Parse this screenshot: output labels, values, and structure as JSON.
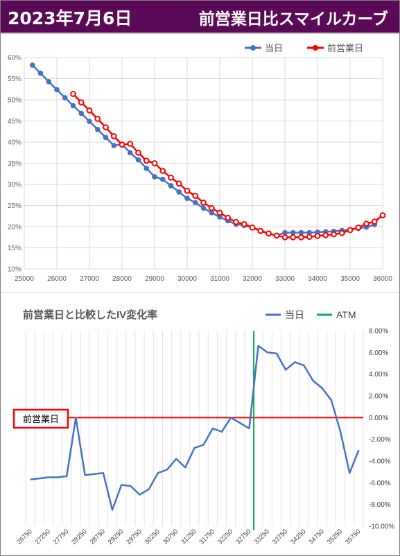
{
  "header": {
    "date": "2023年7月6日",
    "title": "前営業日比スマイルカーブ"
  },
  "colors": {
    "header_bg": "#5b0a57",
    "today": "#4472c4",
    "prev": "#ff0000",
    "atm": "#00b050"
  },
  "chart_data": [
    {
      "type": "line",
      "title": "",
      "legend_position": "top-right",
      "xlim": [
        25000,
        36000
      ],
      "ylim": [
        10,
        60
      ],
      "x_ticks": [
        "25000",
        "26000",
        "27000",
        "28000",
        "29000",
        "30000",
        "31000",
        "32000",
        "33000",
        "34000",
        "35000",
        "36000"
      ],
      "y_ticks": [
        "10%",
        "15%",
        "20%",
        "25%",
        "30%",
        "35%",
        "40%",
        "45%",
        "50%",
        "55%",
        "60%"
      ],
      "grid": true,
      "series": [
        {
          "name": "当日",
          "color": "#4472c4",
          "points": [
            [
              25250,
              58.2
            ],
            [
              25500,
              56.3
            ],
            [
              25750,
              54.3
            ],
            [
              26000,
              52.4
            ],
            [
              26250,
              50.5
            ],
            [
              26500,
              48.6
            ],
            [
              26750,
              46.8
            ],
            [
              27000,
              44.9
            ],
            [
              27250,
              43.0
            ],
            [
              27500,
              41.1
            ],
            [
              27750,
              39.2
            ],
            [
              28000,
              39.5
            ],
            [
              28250,
              37.5
            ],
            [
              28500,
              35.8
            ],
            [
              28750,
              33.8
            ],
            [
              29000,
              31.8
            ],
            [
              29250,
              31.2
            ],
            [
              29500,
              29.7
            ],
            [
              29750,
              28.2
            ],
            [
              30000,
              26.7
            ],
            [
              30250,
              25.7
            ],
            [
              30500,
              24.4
            ],
            [
              30750,
              23.3
            ],
            [
              31000,
              22.3
            ],
            [
              31250,
              21.4
            ],
            [
              31500,
              20.6
            ],
            [
              31750,
              20.3
            ],
            [
              32000,
              19.9
            ],
            [
              32250,
              19.1
            ],
            [
              32500,
              18.4
            ],
            [
              32750,
              17.9
            ],
            [
              33000,
              18.6
            ],
            [
              33250,
              18.6
            ],
            [
              33500,
              18.6
            ],
            [
              33750,
              18.6
            ],
            [
              34000,
              18.7
            ],
            [
              34250,
              18.8
            ],
            [
              34500,
              18.9
            ],
            [
              34750,
              19.1
            ],
            [
              35000,
              19.3
            ],
            [
              35250,
              19.6
            ],
            [
              35500,
              19.9
            ],
            [
              35750,
              20.5
            ]
          ]
        },
        {
          "name": "前営業日",
          "color": "#ff0000",
          "points": [
            [
              26500,
              51.4
            ],
            [
              26750,
              49.4
            ],
            [
              27000,
              47.5
            ],
            [
              27250,
              45.5
            ],
            [
              27500,
              43.5
            ],
            [
              27750,
              41.4
            ],
            [
              28000,
              39.4
            ],
            [
              28250,
              39.6
            ],
            [
              28500,
              37.5
            ],
            [
              28750,
              35.6
            ],
            [
              29000,
              35.0
            ],
            [
              29250,
              33.2
            ],
            [
              29500,
              31.6
            ],
            [
              29750,
              30.2
            ],
            [
              30000,
              28.5
            ],
            [
              30250,
              27.3
            ],
            [
              30500,
              25.7
            ],
            [
              30750,
              24.4
            ],
            [
              31000,
              23.3
            ],
            [
              31250,
              22.1
            ],
            [
              31500,
              21.1
            ],
            [
              31750,
              20.6
            ],
            [
              32000,
              19.8
            ],
            [
              32250,
              19.0
            ],
            [
              32500,
              18.4
            ],
            [
              32750,
              17.9
            ],
            [
              33000,
              17.5
            ],
            [
              33250,
              17.5
            ],
            [
              33500,
              17.5
            ],
            [
              33750,
              17.6
            ],
            [
              34000,
              17.8
            ],
            [
              34250,
              18.0
            ],
            [
              34500,
              18.2
            ],
            [
              34750,
              18.5
            ],
            [
              35000,
              19.2
            ],
            [
              35250,
              19.8
            ],
            [
              35500,
              20.7
            ],
            [
              35750,
              21.2
            ],
            [
              36000,
              22.7
            ]
          ]
        }
      ]
    },
    {
      "type": "line",
      "title": "前営業日と比較したIV変化率",
      "legend_position": "top-right",
      "categories": [
        26750,
        27000,
        27250,
        27500,
        27750,
        28000,
        28250,
        28500,
        28750,
        29000,
        29250,
        29500,
        29750,
        30000,
        30250,
        30500,
        30750,
        31000,
        31250,
        31500,
        31750,
        32000,
        32250,
        32500,
        32750,
        33000,
        33250,
        33500,
        33750,
        34000,
        34250,
        34500,
        34750,
        35000,
        35250,
        35500,
        35750
      ],
      "x_tick_labels": [
        "26750",
        "27250",
        "27750",
        "28250",
        "28750",
        "29250",
        "29750",
        "30250",
        "30750",
        "31250",
        "31750",
        "32250",
        "32750",
        "33250",
        "33750",
        "34250",
        "34750",
        "35250",
        "35750"
      ],
      "ylim": [
        -10,
        8
      ],
      "y_ticks": [
        "8.00%",
        "6.00%",
        "4.00%",
        "2.00%",
        "0.00%",
        "-2.00%",
        "-4.00%",
        "-6.00%",
        "-8.00%",
        "-10.00%"
      ],
      "grid": true,
      "atm": 32750,
      "baseline_label": "前営業日",
      "series": [
        {
          "name": "当日",
          "color": "#4472c4",
          "values": [
            -5.7,
            -5.6,
            -5.5,
            -5.5,
            -5.4,
            0.0,
            -5.3,
            -5.2,
            -5.1,
            -8.5,
            -6.2,
            -6.3,
            -7.1,
            -6.6,
            -5.1,
            -4.8,
            -3.8,
            -4.6,
            -2.8,
            -2.5,
            -1.0,
            -1.3,
            0.0,
            -0.5,
            -1.0,
            6.6,
            6.0,
            5.9,
            4.4,
            5.1,
            4.8,
            3.4,
            2.7,
            1.6,
            -1.3,
            -5.1,
            -3.0
          ]
        },
        {
          "name": "ATM",
          "color": "#00b050"
        }
      ]
    }
  ]
}
